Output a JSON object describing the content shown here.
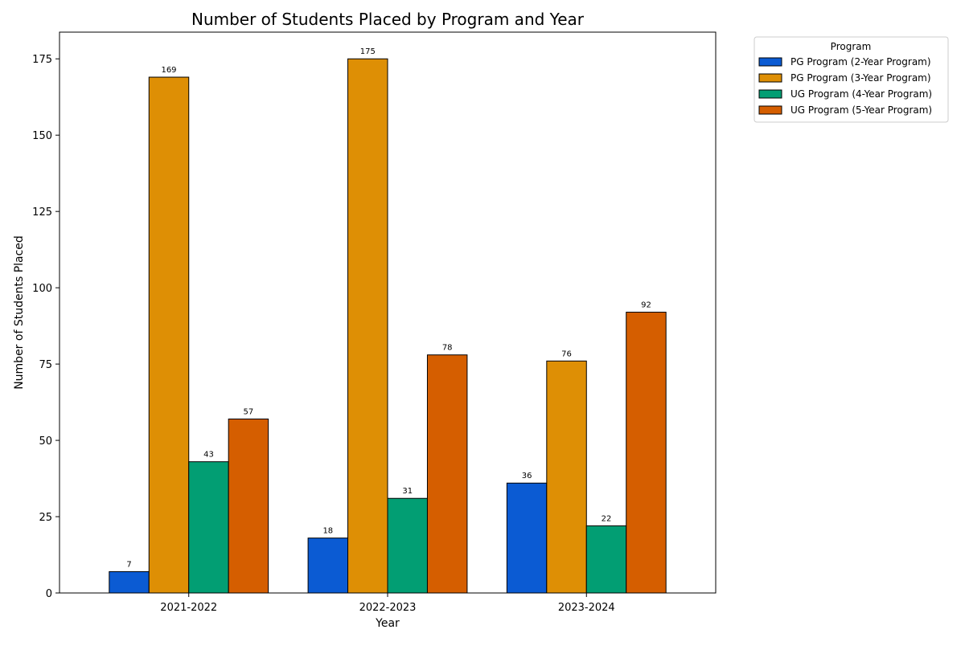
{
  "chart_data": {
    "type": "bar",
    "title": "Number of Students Placed by Program and Year",
    "xlabel": "Year",
    "ylabel": "Number of Students Placed",
    "categories": [
      "2021-2022",
      "2022-2023",
      "2023-2024"
    ],
    "ylim": [
      0,
      183.75
    ],
    "yticks": [
      0,
      25,
      50,
      75,
      100,
      125,
      150,
      175
    ],
    "grid": false,
    "legend": {
      "title": "Program",
      "placement": "outside-top-right"
    },
    "series": [
      {
        "name": "PG Program (2-Year Program)",
        "color": "#0b5bd3",
        "values": [
          7,
          18,
          36
        ]
      },
      {
        "name": "PG Program (3-Year Program)",
        "color": "#de8f05",
        "values": [
          169,
          175,
          76
        ]
      },
      {
        "name": "UG Program (4-Year Program)",
        "color": "#029e73",
        "values": [
          43,
          31,
          22
        ]
      },
      {
        "name": "UG Program (5-Year Program)",
        "color": "#d55e00",
        "values": [
          57,
          78,
          92
        ]
      }
    ]
  }
}
